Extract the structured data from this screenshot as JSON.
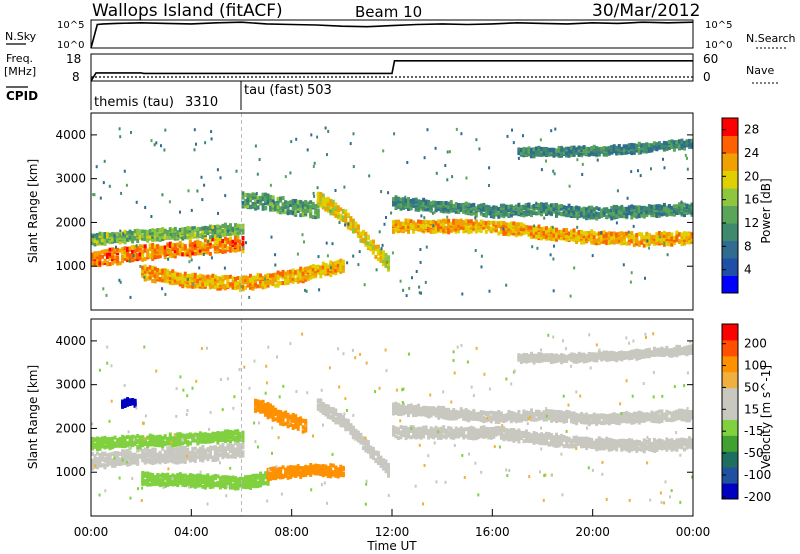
{
  "header": {
    "station": "Wallops Island (fitACF)",
    "beam": "Beam 10",
    "date": "30/Mar/2012"
  },
  "noise_panel": {
    "left_label": "N.Sky",
    "right_label": "N.Search",
    "left_ticks": [
      "10^5",
      "10^0"
    ],
    "right_ticks": [
      "10^5",
      "10^0"
    ]
  },
  "freq_panel": {
    "left_label_line1": "Freq.",
    "left_label_line2": "[MHz]",
    "left_ticks": [
      "18",
      "8"
    ],
    "right_label": "Nave",
    "right_ticks": [
      "60",
      "0"
    ]
  },
  "cpid": {
    "label": "CPID",
    "segments": [
      {
        "name": "themis (tau)",
        "id": "3310",
        "start_h": 0,
        "end_h": 6
      },
      {
        "name": "tau (fast)",
        "id": "503",
        "start_h": 6,
        "end_h": 24
      }
    ]
  },
  "colors": {
    "background": "#ffffff",
    "power_scale": [
      "#0000ff",
      "#1f4fa6",
      "#2f6c8f",
      "#3f8a6f",
      "#5aa55a",
      "#8fc63f",
      "#e0d000",
      "#f0a000",
      "#ff6000",
      "#ff0000"
    ],
    "velocity_scale": [
      "#ff0000",
      "#ff5000",
      "#ff9000",
      "#f0b040",
      "#c8c8c0",
      "#c8c8c0",
      "#80d040",
      "#40a030",
      "#1f6f5f",
      "#2050a0",
      "#0000c0"
    ]
  },
  "chart_data": [
    {
      "type": "line",
      "name": "noise",
      "x_unit": "hours UT",
      "series": [
        {
          "name": "N.Sky",
          "x": [
            0,
            0.25,
            0.5,
            1,
            2,
            3,
            4,
            5,
            6,
            7,
            8,
            9,
            10,
            11,
            12,
            13,
            14,
            15,
            16,
            17,
            18,
            19,
            20,
            21,
            22,
            23,
            24
          ],
          "y": [
            0,
            4.2,
            4.3,
            4.4,
            4.5,
            4.4,
            4.3,
            4.5,
            4.6,
            4.3,
            4.2,
            4.1,
            3.9,
            3.8,
            4.0,
            4.2,
            4.3,
            4.2,
            4.3,
            4.5,
            4.4,
            4.3,
            4.5,
            4.4,
            4.6,
            4.5,
            4.6
          ]
        },
        {
          "name": "N.Search",
          "x": [
            0,
            24
          ],
          "y": [
            0,
            0
          ]
        }
      ],
      "ylim": [
        0,
        5
      ],
      "yscale": "log"
    },
    {
      "type": "line",
      "name": "freq_nave",
      "series": [
        {
          "name": "Freq. [MHz]",
          "x": [
            0,
            0.2,
            2,
            2.1,
            6,
            6.1,
            12,
            12.1,
            24
          ],
          "y": [
            8,
            11,
            11,
            10.8,
            10.8,
            10.8,
            10.8,
            15.5,
            15.5
          ]
        },
        {
          "name": "Nave",
          "x": [
            0,
            24
          ],
          "y": [
            2,
            2
          ]
        }
      ],
      "ylim_left": [
        8,
        18
      ],
      "ylim_right": [
        0,
        60
      ]
    },
    {
      "type": "heatmap",
      "name": "power",
      "xlabel": "",
      "ylabel": "Slant Range [km]",
      "xlim": [
        0,
        24
      ],
      "ylim": [
        0,
        4500
      ],
      "yticks": [
        1000,
        2000,
        3000,
        4000
      ],
      "colorbar_label": "Power [dB]",
      "colorbar_ticks": [
        4,
        8,
        12,
        16,
        20,
        24,
        28
      ],
      "colorbar_range": [
        0,
        30
      ],
      "bands": [
        {
          "t": [
            0,
            2,
            4,
            6
          ],
          "r": [
            1200,
            1350,
            1450,
            1550
          ],
          "w": 280,
          "v": 24
        },
        {
          "t": [
            0,
            2,
            4,
            6
          ],
          "r": [
            1650,
            1750,
            1800,
            1900
          ],
          "w": 200,
          "v": 15
        },
        {
          "t": [
            2,
            4,
            6,
            8,
            10
          ],
          "r": [
            900,
            700,
            650,
            800,
            1050
          ],
          "w": 250,
          "v": 22
        },
        {
          "t": [
            6,
            7,
            8,
            9
          ],
          "r": [
            2550,
            2500,
            2400,
            2300
          ],
          "w": 300,
          "v": 12
        },
        {
          "t": [
            9,
            10,
            11,
            11.8
          ],
          "r": [
            2600,
            2200,
            1600,
            1100
          ],
          "w": 260,
          "v": 20
        },
        {
          "t": [
            12,
            14,
            16,
            18,
            20,
            22,
            24
          ],
          "r": [
            1950,
            1950,
            1950,
            1800,
            1700,
            1650,
            1700
          ],
          "w": 220,
          "v": 22
        },
        {
          "t": [
            12,
            14,
            16,
            18,
            20,
            22,
            24
          ],
          "r": [
            2500,
            2400,
            2300,
            2350,
            2250,
            2300,
            2350
          ],
          "w": 200,
          "v": 11
        },
        {
          "t": [
            17,
            19,
            21,
            23,
            24
          ],
          "r": [
            3650,
            3650,
            3700,
            3800,
            3850
          ],
          "w": 150,
          "v": 10
        }
      ]
    },
    {
      "type": "heatmap",
      "name": "velocity",
      "xlabel": "Time UT",
      "ylabel": "Slant Range [km]",
      "xlim": [
        0,
        24
      ],
      "ylim": [
        0,
        4500
      ],
      "xticks": [
        "00:00",
        "04:00",
        "08:00",
        "12:00",
        "16:00",
        "20:00",
        "00:00"
      ],
      "yticks": [
        1000,
        2000,
        3000,
        4000
      ],
      "colorbar_label": "Velocity [m s^-1]",
      "colorbar_ticks": [
        200,
        100,
        50,
        15,
        -15,
        -50,
        -100,
        -200
      ],
      "bands": [
        {
          "t": [
            0,
            2,
            4,
            6
          ],
          "r": [
            1300,
            1400,
            1450,
            1550
          ],
          "w": 280,
          "v": 0
        },
        {
          "t": [
            0,
            2,
            4,
            6
          ],
          "r": [
            1700,
            1750,
            1800,
            1900
          ],
          "w": 200,
          "v": 20
        },
        {
          "t": [
            2,
            4,
            6,
            7
          ],
          "r": [
            900,
            850,
            800,
            900
          ],
          "w": 230,
          "v": 30
        },
        {
          "t": [
            7,
            8,
            9,
            10
          ],
          "r": [
            1000,
            1050,
            1100,
            1050
          ],
          "w": 200,
          "v": -60
        },
        {
          "t": [
            6.5,
            7.5,
            8.5
          ],
          "r": [
            2600,
            2300,
            2100
          ],
          "w": 250,
          "v": -80
        },
        {
          "t": [
            9,
            10,
            11,
            11.8
          ],
          "r": [
            2600,
            2200,
            1600,
            1100
          ],
          "w": 220,
          "v": 0
        },
        {
          "t": [
            12,
            14,
            16,
            18,
            20,
            22,
            24
          ],
          "r": [
            1950,
            1950,
            1950,
            1800,
            1700,
            1650,
            1700
          ],
          "w": 200,
          "v": 0
        },
        {
          "t": [
            12,
            14,
            16,
            18,
            20,
            22,
            24
          ],
          "r": [
            2500,
            2400,
            2300,
            2350,
            2250,
            2300,
            2350
          ],
          "w": 180,
          "v": 5
        },
        {
          "t": [
            17,
            19,
            21,
            23,
            24
          ],
          "r": [
            3650,
            3650,
            3700,
            3800,
            3850
          ],
          "w": 140,
          "v": 0
        },
        {
          "t": [
            1.2,
            1.5,
            1.8
          ],
          "r": [
            2600,
            2650,
            2600
          ],
          "w": 120,
          "v": 200
        }
      ]
    }
  ]
}
